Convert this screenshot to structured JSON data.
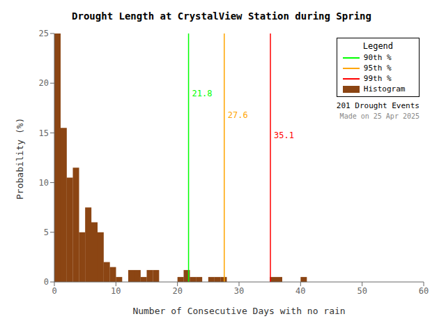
{
  "chart_data": {
    "type": "histogram",
    "title": "Drought Length at CrystalView Station during Spring",
    "x_label": "Number of Consecutive Days with no rain",
    "y_label": "Probability (%)",
    "name": "Histogram",
    "color": "#8B4513",
    "bins": [
      0,
      1,
      2,
      3,
      4,
      5,
      6,
      7,
      8,
      9,
      10,
      11,
      12,
      13,
      14,
      15,
      16,
      17,
      18,
      19,
      20,
      21,
      22,
      23,
      24,
      25,
      26,
      27,
      28,
      29,
      30,
      31,
      32,
      33,
      34,
      35,
      36,
      37,
      38,
      39,
      40,
      41,
      42,
      43,
      44,
      45,
      46,
      47,
      48,
      49,
      50,
      51,
      52,
      53,
      54,
      55,
      56,
      57,
      58,
      59,
      60
    ],
    "values": [
      25.0,
      15.5,
      10.5,
      11.5,
      5.0,
      7.5,
      6.0,
      5.0,
      2.0,
      1.5,
      0.5,
      0.0,
      1.2,
      1.2,
      0.5,
      1.2,
      1.2,
      0.0,
      0.0,
      0.0,
      0.5,
      1.2,
      0.5,
      0.5,
      0.0,
      0.5,
      0.5,
      0.5,
      0.0,
      0.0,
      0.0,
      0.0,
      0.0,
      0.0,
      0.0,
      0.5,
      0.5,
      0.0,
      0.0,
      0.0,
      0.5,
      0.0,
      0.0,
      0.0,
      0.0,
      0.0,
      0.0,
      0.0,
      0.0,
      0.0,
      0.0,
      0.0,
      0.0,
      0.0,
      0.0,
      0.0,
      0.0,
      0.0,
      0.0,
      0.0
    ],
    "lines": [
      {
        "name": "90th %",
        "x": 21.8,
        "color": "#00FF00",
        "label": "21.8",
        "label_y": 19.0
      },
      {
        "name": "95th %",
        "x": 27.6,
        "color": "#FFA500",
        "label": "27.6",
        "label_y": 16.8
      },
      {
        "name": "99th %",
        "x": 35.1,
        "color": "#FF0000",
        "label": "35.1",
        "label_y": 14.8
      }
    ],
    "xlim": [
      0,
      60
    ],
    "ylim": [
      0,
      25
    ],
    "xticks": [
      0,
      10,
      20,
      30,
      40,
      50,
      60
    ],
    "yticks": [
      0,
      5,
      10,
      15,
      20,
      25
    ],
    "grid": false,
    "legend": "upper right",
    "legend_title": "Legend",
    "annotations": [
      "201 Drought Events",
      "Made on 25 Apr 2025"
    ]
  }
}
